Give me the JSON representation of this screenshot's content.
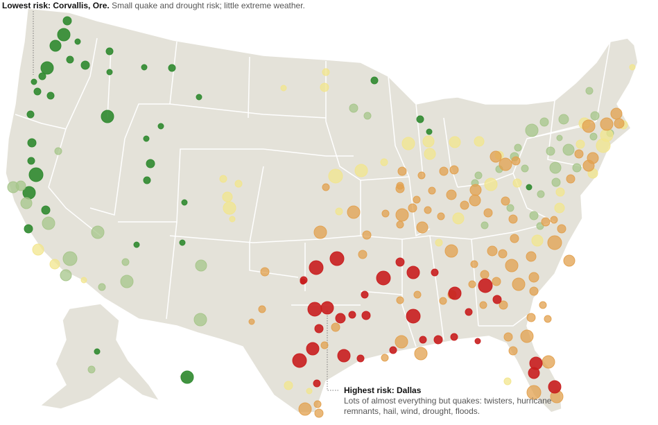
{
  "annotations": {
    "lowest": {
      "heading": "Lowest risk: Corvallis, Ore.",
      "text": "Small quake and drought risk; little extreme weather."
    },
    "highest": {
      "heading": "Highest risk: Dallas",
      "text": "Lots of almost everything but quakes: twisters, hurricane remnants, hail, wind, drought, floods."
    }
  },
  "legend_colors": {
    "lowest": "#2f8a2f",
    "low": "#a6c58a",
    "middle": "#f2e58c",
    "high": "#e1a04e",
    "highest": "#c81e1e"
  },
  "map": {
    "land": "#e4e2d9",
    "borders": "#ffffff"
  }
}
